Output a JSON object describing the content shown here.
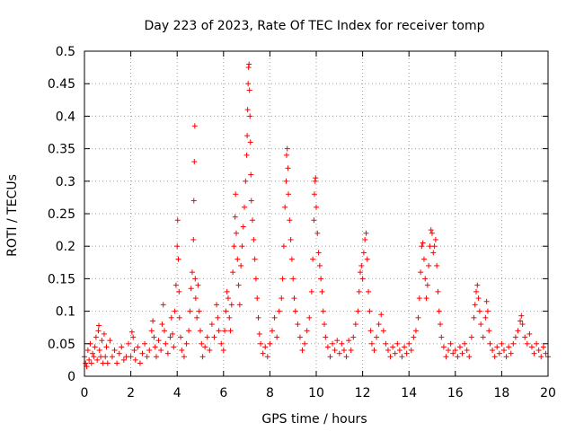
{
  "chart_data": {
    "type": "scatter",
    "title": "Day 223 of 2023, Rate Of TEC Index for receiver tomp",
    "xlabel": "GPS time / hours",
    "ylabel": "ROTI / TECUs",
    "xlim": [
      0,
      20
    ],
    "ylim": [
      0,
      0.5
    ],
    "grid": true,
    "marker": "+",
    "color": "#ff0000",
    "x_ticks": [
      {
        "value": 0,
        "label": "0"
      },
      {
        "value": 2,
        "label": "2"
      },
      {
        "value": 4,
        "label": "4"
      },
      {
        "value": 6,
        "label": "6"
      },
      {
        "value": 8,
        "label": "8"
      },
      {
        "value": 10,
        "label": "10"
      },
      {
        "value": 12,
        "label": "12"
      },
      {
        "value": 14,
        "label": "14"
      },
      {
        "value": 16,
        "label": "16"
      },
      {
        "value": 18,
        "label": "18"
      },
      {
        "value": 20,
        "label": "20"
      }
    ],
    "y_ticks": [
      {
        "value": 0,
        "label": "0"
      },
      {
        "value": 0.05,
        "label": "0.05"
      },
      {
        "value": 0.1,
        "label": "0.1"
      },
      {
        "value": 0.15,
        "label": "0.15"
      },
      {
        "value": 0.2,
        "label": "0.2"
      },
      {
        "value": 0.25,
        "label": "0.25"
      },
      {
        "value": 0.3,
        "label": "0.3"
      },
      {
        "value": 0.35,
        "label": "0.35"
      },
      {
        "value": 0.4,
        "label": "0.4"
      },
      {
        "value": 0.45,
        "label": "0.45"
      },
      {
        "value": 0.5,
        "label": "0.5"
      }
    ],
    "series": [
      {
        "name": "ROTI",
        "points": [
          [
            0.0,
            0.03
          ],
          [
            0.05,
            0.02
          ],
          [
            0.1,
            0.015
          ],
          [
            0.15,
            0.04
          ],
          [
            0.2,
            0.025
          ],
          [
            0.25,
            0.05
          ],
          [
            0.3,
            0.02
          ],
          [
            0.35,
            0.035
          ],
          [
            0.4,
            0.03
          ],
          [
            0.45,
            0.045
          ],
          [
            0.5,
            0.06
          ],
          [
            0.55,
            0.025
          ],
          [
            0.6,
            0.07
          ],
          [
            0.62,
            0.078
          ],
          [
            0.65,
            0.04
          ],
          [
            0.7,
            0.03
          ],
          [
            0.75,
            0.055
          ],
          [
            0.8,
            0.02
          ],
          [
            0.85,
            0.065
          ],
          [
            0.9,
            0.03
          ],
          [
            0.95,
            0.045
          ],
          [
            1.0,
            0.02
          ],
          [
            1.1,
            0.055
          ],
          [
            1.2,
            0.03
          ],
          [
            1.3,
            0.04
          ],
          [
            1.4,
            0.02
          ],
          [
            1.5,
            0.035
          ],
          [
            1.6,
            0.045
          ],
          [
            1.7,
            0.025
          ],
          [
            1.8,
            0.03
          ],
          [
            1.9,
            0.05
          ],
          [
            2.0,
            0.03
          ],
          [
            2.05,
            0.068
          ],
          [
            2.1,
            0.06
          ],
          [
            2.15,
            0.04
          ],
          [
            2.2,
            0.025
          ],
          [
            2.3,
            0.045
          ],
          [
            2.4,
            0.02
          ],
          [
            2.5,
            0.035
          ],
          [
            2.6,
            0.05
          ],
          [
            2.7,
            0.03
          ],
          [
            2.8,
            0.04
          ],
          [
            2.9,
            0.07
          ],
          [
            2.95,
            0.085
          ],
          [
            3.0,
            0.06
          ],
          [
            3.05,
            0.045
          ],
          [
            3.1,
            0.03
          ],
          [
            3.2,
            0.055
          ],
          [
            3.3,
            0.04
          ],
          [
            3.35,
            0.08
          ],
          [
            3.4,
            0.11
          ],
          [
            3.45,
            0.07
          ],
          [
            3.5,
            0.05
          ],
          [
            3.6,
            0.035
          ],
          [
            3.7,
            0.06
          ],
          [
            3.75,
            0.09
          ],
          [
            3.8,
            0.065
          ],
          [
            3.85,
            0.045
          ],
          [
            3.9,
            0.1
          ],
          [
            3.95,
            0.14
          ],
          [
            4.0,
            0.2
          ],
          [
            4.02,
            0.24
          ],
          [
            4.05,
            0.18
          ],
          [
            4.08,
            0.13
          ],
          [
            4.1,
            0.09
          ],
          [
            4.15,
            0.06
          ],
          [
            4.2,
            0.04
          ],
          [
            4.3,
            0.03
          ],
          [
            4.4,
            0.05
          ],
          [
            4.5,
            0.07
          ],
          [
            4.55,
            0.1
          ],
          [
            4.6,
            0.135
          ],
          [
            4.65,
            0.16
          ],
          [
            4.7,
            0.21
          ],
          [
            4.72,
            0.27
          ],
          [
            4.74,
            0.33
          ],
          [
            4.76,
            0.385
          ],
          [
            4.78,
            0.15
          ],
          [
            4.8,
            0.12
          ],
          [
            4.85,
            0.09
          ],
          [
            4.9,
            0.14
          ],
          [
            4.95,
            0.1
          ],
          [
            5.0,
            0.07
          ],
          [
            5.05,
            0.05
          ],
          [
            5.1,
            0.03
          ],
          [
            5.2,
            0.045
          ],
          [
            5.3,
            0.06
          ],
          [
            5.4,
            0.04
          ],
          [
            5.5,
            0.08
          ],
          [
            5.6,
            0.06
          ],
          [
            5.7,
            0.11
          ],
          [
            5.75,
            0.09
          ],
          [
            5.8,
            0.07
          ],
          [
            5.9,
            0.05
          ],
          [
            6.0,
            0.04
          ],
          [
            6.05,
            0.07
          ],
          [
            6.1,
            0.1
          ],
          [
            6.15,
            0.13
          ],
          [
            6.2,
            0.12
          ],
          [
            6.25,
            0.09
          ],
          [
            6.3,
            0.07
          ],
          [
            6.35,
            0.11
          ],
          [
            6.4,
            0.16
          ],
          [
            6.45,
            0.2
          ],
          [
            6.5,
            0.245
          ],
          [
            6.52,
            0.28
          ],
          [
            6.55,
            0.22
          ],
          [
            6.6,
            0.18
          ],
          [
            6.65,
            0.14
          ],
          [
            6.7,
            0.11
          ],
          [
            6.75,
            0.17
          ],
          [
            6.8,
            0.2
          ],
          [
            6.85,
            0.23
          ],
          [
            6.9,
            0.26
          ],
          [
            6.95,
            0.3
          ],
          [
            7.0,
            0.34
          ],
          [
            7.02,
            0.37
          ],
          [
            7.04,
            0.41
          ],
          [
            7.06,
            0.45
          ],
          [
            7.08,
            0.475
          ],
          [
            7.1,
            0.48
          ],
          [
            7.12,
            0.44
          ],
          [
            7.14,
            0.4
          ],
          [
            7.16,
            0.36
          ],
          [
            7.18,
            0.31
          ],
          [
            7.2,
            0.27
          ],
          [
            7.25,
            0.24
          ],
          [
            7.3,
            0.21
          ],
          [
            7.35,
            0.18
          ],
          [
            7.4,
            0.15
          ],
          [
            7.45,
            0.12
          ],
          [
            7.5,
            0.09
          ],
          [
            7.55,
            0.065
          ],
          [
            7.6,
            0.05
          ],
          [
            7.7,
            0.035
          ],
          [
            7.8,
            0.045
          ],
          [
            7.9,
            0.03
          ],
          [
            8.0,
            0.05
          ],
          [
            8.1,
            0.07
          ],
          [
            8.2,
            0.09
          ],
          [
            8.3,
            0.06
          ],
          [
            8.4,
            0.1
          ],
          [
            8.5,
            0.12
          ],
          [
            8.55,
            0.15
          ],
          [
            8.6,
            0.2
          ],
          [
            8.65,
            0.26
          ],
          [
            8.7,
            0.3
          ],
          [
            8.72,
            0.34
          ],
          [
            8.75,
            0.35
          ],
          [
            8.78,
            0.32
          ],
          [
            8.8,
            0.28
          ],
          [
            8.85,
            0.24
          ],
          [
            8.9,
            0.21
          ],
          [
            8.95,
            0.18
          ],
          [
            9.0,
            0.15
          ],
          [
            9.05,
            0.12
          ],
          [
            9.1,
            0.1
          ],
          [
            9.2,
            0.08
          ],
          [
            9.3,
            0.06
          ],
          [
            9.4,
            0.04
          ],
          [
            9.5,
            0.05
          ],
          [
            9.6,
            0.07
          ],
          [
            9.7,
            0.09
          ],
          [
            9.8,
            0.13
          ],
          [
            9.85,
            0.18
          ],
          [
            9.9,
            0.24
          ],
          [
            9.92,
            0.28
          ],
          [
            9.95,
            0.3
          ],
          [
            9.97,
            0.305
          ],
          [
            10.0,
            0.26
          ],
          [
            10.05,
            0.22
          ],
          [
            10.1,
            0.19
          ],
          [
            10.15,
            0.17
          ],
          [
            10.2,
            0.15
          ],
          [
            10.25,
            0.13
          ],
          [
            10.3,
            0.1
          ],
          [
            10.35,
            0.08
          ],
          [
            10.4,
            0.06
          ],
          [
            10.5,
            0.045
          ],
          [
            10.6,
            0.03
          ],
          [
            10.7,
            0.05
          ],
          [
            10.8,
            0.04
          ],
          [
            10.9,
            0.055
          ],
          [
            11.0,
            0.035
          ],
          [
            11.1,
            0.05
          ],
          [
            11.2,
            0.04
          ],
          [
            11.3,
            0.03
          ],
          [
            11.4,
            0.055
          ],
          [
            11.5,
            0.04
          ],
          [
            11.6,
            0.06
          ],
          [
            11.7,
            0.08
          ],
          [
            11.8,
            0.1
          ],
          [
            11.85,
            0.13
          ],
          [
            11.9,
            0.16
          ],
          [
            11.95,
            0.17
          ],
          [
            12.0,
            0.15
          ],
          [
            12.05,
            0.19
          ],
          [
            12.1,
            0.21
          ],
          [
            12.15,
            0.22
          ],
          [
            12.2,
            0.18
          ],
          [
            12.25,
            0.13
          ],
          [
            12.3,
            0.1
          ],
          [
            12.35,
            0.07
          ],
          [
            12.4,
            0.05
          ],
          [
            12.5,
            0.04
          ],
          [
            12.6,
            0.06
          ],
          [
            12.7,
            0.08
          ],
          [
            12.8,
            0.095
          ],
          [
            12.9,
            0.07
          ],
          [
            13.0,
            0.05
          ],
          [
            13.1,
            0.04
          ],
          [
            13.2,
            0.03
          ],
          [
            13.3,
            0.045
          ],
          [
            13.4,
            0.035
          ],
          [
            13.5,
            0.05
          ],
          [
            13.6,
            0.04
          ],
          [
            13.7,
            0.03
          ],
          [
            13.8,
            0.045
          ],
          [
            13.9,
            0.035
          ],
          [
            14.0,
            0.05
          ],
          [
            14.1,
            0.04
          ],
          [
            14.2,
            0.06
          ],
          [
            14.3,
            0.07
          ],
          [
            14.4,
            0.09
          ],
          [
            14.45,
            0.12
          ],
          [
            14.5,
            0.16
          ],
          [
            14.55,
            0.2
          ],
          [
            14.6,
            0.205
          ],
          [
            14.65,
            0.18
          ],
          [
            14.7,
            0.15
          ],
          [
            14.75,
            0.12
          ],
          [
            14.8,
            0.14
          ],
          [
            14.85,
            0.17
          ],
          [
            14.9,
            0.2
          ],
          [
            14.95,
            0.225
          ],
          [
            15.0,
            0.22
          ],
          [
            15.05,
            0.19
          ],
          [
            15.1,
            0.2
          ],
          [
            15.15,
            0.21
          ],
          [
            15.2,
            0.17
          ],
          [
            15.25,
            0.13
          ],
          [
            15.3,
            0.1
          ],
          [
            15.35,
            0.08
          ],
          [
            15.4,
            0.06
          ],
          [
            15.5,
            0.045
          ],
          [
            15.6,
            0.03
          ],
          [
            15.7,
            0.04
          ],
          [
            15.8,
            0.05
          ],
          [
            15.9,
            0.035
          ],
          [
            16.0,
            0.04
          ],
          [
            16.1,
            0.03
          ],
          [
            16.2,
            0.045
          ],
          [
            16.3,
            0.035
          ],
          [
            16.4,
            0.05
          ],
          [
            16.5,
            0.04
          ],
          [
            16.6,
            0.03
          ],
          [
            16.7,
            0.06
          ],
          [
            16.8,
            0.09
          ],
          [
            16.85,
            0.11
          ],
          [
            16.9,
            0.13
          ],
          [
            16.95,
            0.14
          ],
          [
            17.0,
            0.12
          ],
          [
            17.05,
            0.1
          ],
          [
            17.1,
            0.08
          ],
          [
            17.2,
            0.06
          ],
          [
            17.3,
            0.09
          ],
          [
            17.35,
            0.115
          ],
          [
            17.4,
            0.1
          ],
          [
            17.45,
            0.07
          ],
          [
            17.5,
            0.05
          ],
          [
            17.6,
            0.04
          ],
          [
            17.7,
            0.03
          ],
          [
            17.8,
            0.045
          ],
          [
            17.9,
            0.035
          ],
          [
            18.0,
            0.05
          ],
          [
            18.1,
            0.04
          ],
          [
            18.2,
            0.03
          ],
          [
            18.3,
            0.045
          ],
          [
            18.4,
            0.035
          ],
          [
            18.5,
            0.05
          ],
          [
            18.6,
            0.06
          ],
          [
            18.7,
            0.07
          ],
          [
            18.8,
            0.085
          ],
          [
            18.85,
            0.093
          ],
          [
            18.9,
            0.08
          ],
          [
            19.0,
            0.06
          ],
          [
            19.1,
            0.05
          ],
          [
            19.2,
            0.065
          ],
          [
            19.3,
            0.045
          ],
          [
            19.4,
            0.035
          ],
          [
            19.5,
            0.05
          ],
          [
            19.6,
            0.04
          ],
          [
            19.7,
            0.03
          ],
          [
            19.8,
            0.045
          ],
          [
            19.9,
            0.035
          ],
          [
            20.0,
            0.03
          ]
        ]
      }
    ]
  }
}
